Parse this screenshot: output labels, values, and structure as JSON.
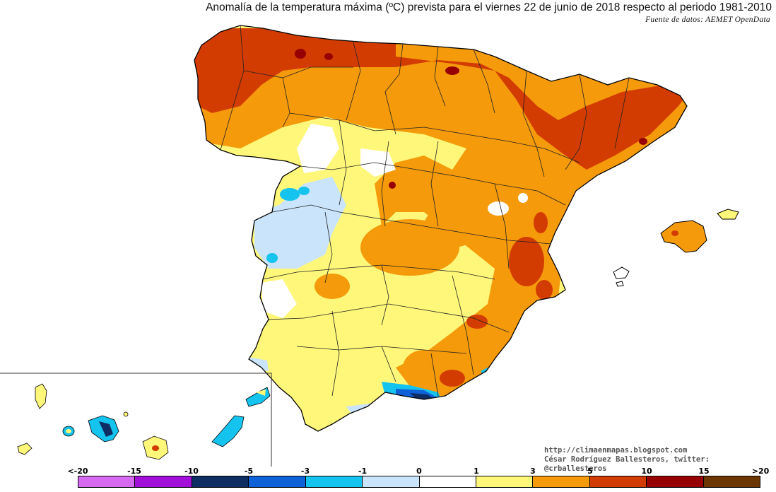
{
  "title": "Anomalía de la temperatura máxima (ºC) prevista para el viernes 22 de junio de 2018 respecto al periodo 1981-2010",
  "source": "Fuente de datos: AEMET OpenData",
  "credits": {
    "blog": "http://climaenmapas.blogspot.com",
    "author": "César Rodríguez Ballesteros, twitter: @crballesteros"
  },
  "legend": {
    "ticks": [
      "<-20",
      "-15",
      "-10",
      "-5",
      "-3",
      "-1",
      "0",
      "1",
      "3",
      "5",
      "10",
      "15",
      ">20"
    ],
    "colors": [
      "#d56af0",
      "#a10fd8",
      "#0d2d63",
      "#0f61d8",
      "#14c3ee",
      "#c9e4fb",
      "#ffffff",
      "#fff77a",
      "#f59a0a",
      "#d23c00",
      "#960000",
      "#6b3600"
    ]
  }
}
